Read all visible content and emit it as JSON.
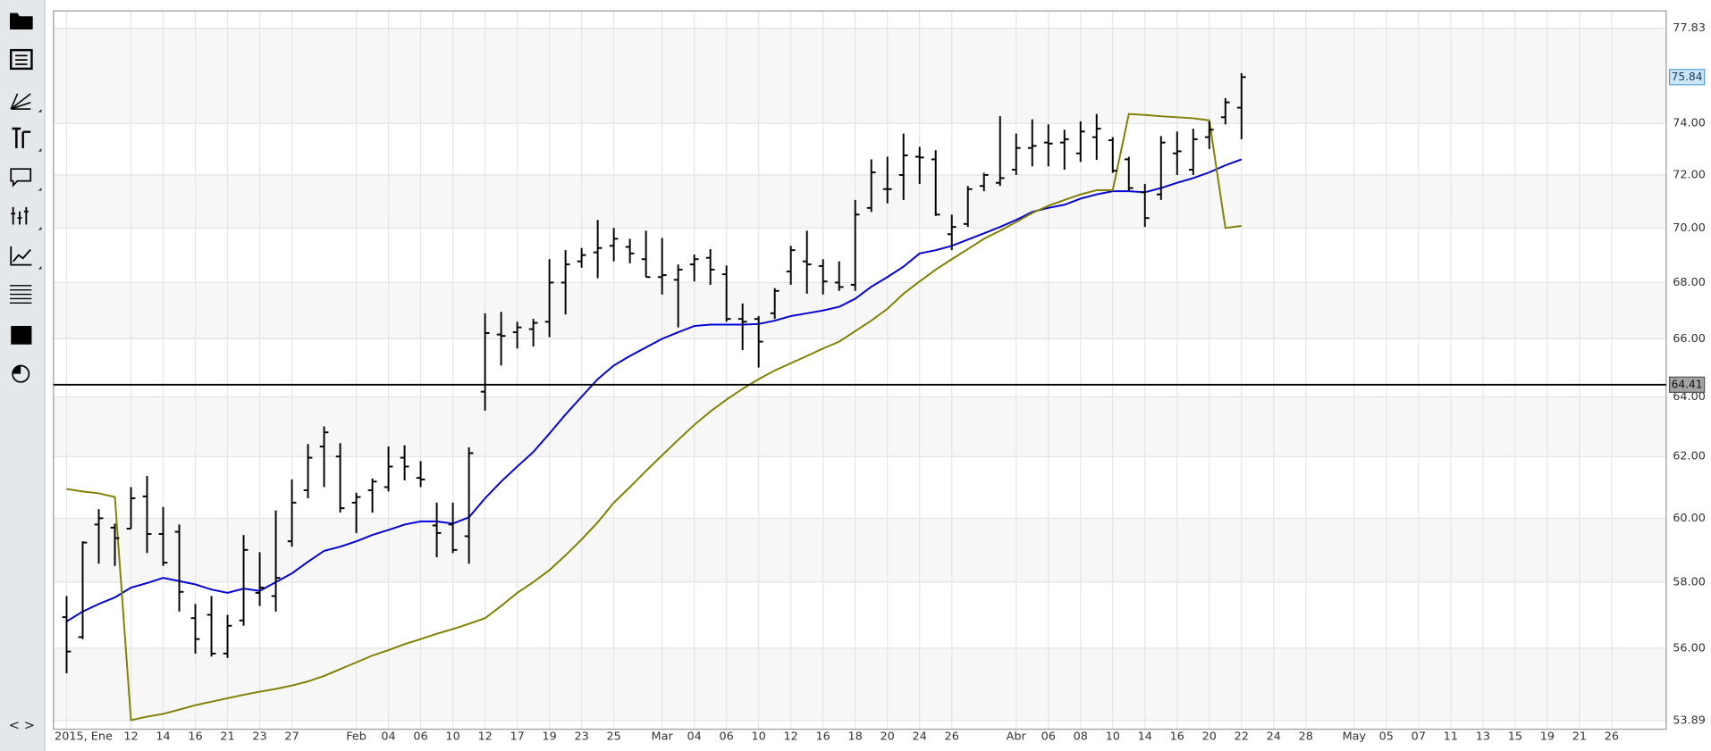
{
  "chart_data": {
    "type": "ohlc",
    "categories": [
      "2015, Ene",
      null,
      null,
      null,
      "12",
      null,
      "14",
      null,
      "16",
      null,
      "21",
      null,
      "23",
      null,
      "27",
      null,
      null,
      null,
      "Feb",
      null,
      "04",
      null,
      "06",
      null,
      "10",
      null,
      "12",
      null,
      "17",
      null,
      "19",
      null,
      "23",
      null,
      "25",
      null,
      null,
      "Mar",
      null,
      "04",
      null,
      "06",
      null,
      "10",
      null,
      "12",
      null,
      "16",
      null,
      "18",
      null,
      "20",
      null,
      "24",
      null,
      "26",
      null,
      null,
      null,
      "Abr",
      null,
      "06",
      null,
      "08",
      null,
      "10",
      null,
      "14",
      null,
      "16",
      null,
      "20",
      null,
      "22",
      null,
      "24",
      null,
      "28",
      null,
      null,
      "May",
      null,
      "05",
      null,
      "07",
      null,
      "11",
      null,
      "13",
      null,
      "15",
      null,
      "19",
      null,
      "21",
      null,
      "26",
      null,
      null,
      null
    ],
    "open": [
      56.93,
      56.33,
      59.8,
      59.7,
      59.67,
      60.7,
      59.5,
      59.57,
      56.9,
      57.0,
      55.84,
      56.83,
      57.67,
      57.57,
      59.27,
      60.9,
      62.33,
      62.0,
      60.5,
      60.9,
      61.0,
      61.96,
      61.3,
      59.77,
      59.8,
      59.43,
      64.17,
      66.15,
      66.23,
      66.34,
      66.6,
      68.0,
      68.77,
      69.1,
      69.34,
      69.3,
      68.85,
      68.2,
      68.1,
      68.66,
      68.9,
      68.3,
      66.7,
      66.7,
      66.9,
      68.4,
      68.77,
      68.6,
      68.0,
      67.92,
      70.75,
      71.46,
      72.0,
      72.7,
      72.6,
      69.77,
      70.15,
      71.58,
      71.7,
      72.2,
      73.04,
      73.25,
      73.25,
      72.83,
      73.46,
      73.34,
      72.6,
      71.34,
      71.26,
      72.83,
      72.2,
      73.46,
      74.24,
      74.62,
      null,
      null,
      null,
      null,
      null,
      null,
      null,
      null,
      null,
      null,
      null,
      null,
      null,
      null,
      null,
      null,
      null,
      null,
      null,
      null,
      null,
      null,
      null,
      null,
      null,
      null
    ],
    "high": [
      57.57,
      59.27,
      60.29,
      59.83,
      61.0,
      61.36,
      60.36,
      59.8,
      57.33,
      57.57,
      57.0,
      59.47,
      58.93,
      60.25,
      61.25,
      62.41,
      63.0,
      62.44,
      60.82,
      61.28,
      62.33,
      62.37,
      61.85,
      60.5,
      60.5,
      62.3,
      66.9,
      66.95,
      66.6,
      66.7,
      68.85,
      69.18,
      69.26,
      70.3,
      70.0,
      69.6,
      69.9,
      69.63,
      68.66,
      69.02,
      69.22,
      68.62,
      67.25,
      66.8,
      67.8,
      69.34,
      69.9,
      68.85,
      68.77,
      71.05,
      72.6,
      72.7,
      73.6,
      73.08,
      72.95,
      70.5,
      71.58,
      72.08,
      74.28,
      73.6,
      74.16,
      73.96,
      73.75,
      74.08,
      74.37,
      73.46,
      72.7,
      71.66,
      73.5,
      73.68,
      73.79,
      74.08,
      75.0,
      76.0,
      null,
      null,
      null,
      null,
      null,
      null,
      null,
      null,
      null,
      null,
      null,
      null,
      null,
      null,
      null,
      null,
      null,
      null,
      null,
      null,
      null,
      null,
      null,
      null,
      null,
      null
    ],
    "low": [
      55.26,
      56.27,
      58.57,
      58.5,
      59.67,
      58.9,
      58.5,
      57.1,
      55.84,
      55.75,
      55.71,
      56.67,
      57.27,
      57.1,
      59.1,
      60.64,
      61.0,
      60.18,
      59.53,
      60.18,
      60.86,
      61.22,
      61.0,
      58.77,
      58.9,
      58.57,
      63.53,
      65.07,
      65.66,
      65.73,
      66.06,
      66.86,
      68.54,
      68.16,
      68.77,
      68.7,
      68.2,
      67.57,
      66.4,
      68.04,
      67.92,
      66.6,
      65.6,
      65.0,
      66.7,
      67.92,
      67.6,
      67.57,
      67.7,
      67.7,
      70.6,
      70.92,
      71.05,
      71.66,
      70.45,
      69.18,
      70.04,
      71.38,
      71.58,
      72.0,
      72.33,
      72.33,
      72.2,
      72.5,
      72.58,
      72.08,
      71.38,
      70.04,
      71.05,
      72.0,
      72.0,
      73.0,
      73.96,
      73.38,
      null,
      null,
      null,
      null,
      null,
      null,
      null,
      null,
      null,
      null,
      null,
      null,
      null,
      null,
      null,
      null,
      null,
      null,
      null,
      null,
      null,
      null,
      null,
      null,
      null,
      null
    ],
    "close": [
      55.9,
      59.23,
      60.0,
      59.37,
      60.64,
      59.5,
      58.6,
      57.7,
      56.27,
      55.84,
      56.67,
      59.0,
      57.83,
      58.13,
      60.5,
      61.96,
      62.8,
      60.32,
      60.68,
      61.18,
      61.67,
      61.67,
      61.25,
      59.53,
      59.0,
      62.11,
      66.2,
      66.1,
      66.4,
      66.56,
      68.0,
      68.66,
      69.0,
      69.26,
      69.6,
      69.06,
      68.2,
      68.27,
      68.47,
      68.85,
      68.47,
      66.7,
      66.6,
      65.9,
      67.7,
      69.18,
      68.66,
      68.04,
      67.84,
      70.5,
      72.1,
      71.46,
      72.75,
      72.67,
      70.5,
      70.04,
      71.46,
      72.0,
      71.88,
      73.04,
      73.12,
      73.21,
      73.38,
      73.68,
      73.79,
      72.16,
      71.5,
      70.37,
      73.25,
      72.91,
      73.38,
      73.75,
      74.83,
      75.84,
      null,
      null,
      null,
      null,
      null,
      null,
      null,
      null,
      null,
      null,
      null,
      null,
      null,
      null,
      null,
      null,
      null,
      null,
      null,
      null,
      null,
      null,
      null,
      null,
      null,
      null
    ],
    "color": "#000000",
    "lines": [
      {
        "color": "#0000dd",
        "values": [
          56.8,
          57.1,
          57.33,
          57.53,
          57.83,
          57.97,
          58.13,
          58.03,
          57.93,
          57.77,
          57.67,
          57.8,
          57.73,
          58.0,
          58.27,
          58.63,
          58.97,
          59.1,
          59.27,
          59.47,
          59.63,
          59.8,
          59.9,
          59.9,
          59.83,
          60.03,
          60.64,
          61.18,
          61.67,
          62.15,
          62.76,
          63.4,
          64.0,
          64.6,
          65.07,
          65.4,
          65.7,
          66.0,
          66.23,
          66.45,
          66.5,
          66.5,
          66.5,
          66.52,
          66.64,
          66.8,
          66.9,
          67.0,
          67.13,
          67.42,
          67.85,
          68.2,
          68.58,
          69.06,
          69.18,
          69.34,
          69.57,
          69.8,
          70.04,
          70.3,
          70.6,
          70.75,
          70.87,
          71.1,
          71.26,
          71.38,
          71.38,
          71.34,
          71.5,
          71.7,
          71.88,
          72.1,
          72.37,
          72.6,
          null,
          null,
          null,
          null,
          null,
          null,
          null,
          null,
          null,
          null,
          null,
          null,
          null,
          null,
          null,
          null,
          null,
          null,
          null,
          null,
          null,
          null,
          null,
          null,
          null,
          null
        ]
      },
      {
        "color": "#808000",
        "values": [
          60.94,
          60.86,
          60.8,
          60.68,
          53.9,
          54.0,
          54.08,
          54.2,
          54.33,
          54.43,
          54.53,
          54.63,
          54.72,
          54.8,
          54.9,
          55.02,
          55.18,
          55.38,
          55.58,
          55.78,
          55.94,
          56.12,
          56.27,
          56.43,
          56.57,
          56.73,
          56.9,
          57.27,
          57.67,
          58.0,
          58.37,
          58.83,
          59.33,
          59.87,
          60.5,
          61.0,
          61.53,
          62.04,
          62.55,
          63.05,
          63.5,
          63.9,
          64.27,
          64.6,
          64.9,
          65.15,
          65.4,
          65.66,
          65.9,
          66.27,
          66.64,
          67.06,
          67.6,
          68.04,
          68.47,
          68.85,
          69.22,
          69.6,
          69.9,
          70.22,
          70.56,
          70.83,
          71.05,
          71.26,
          71.42,
          71.42,
          74.37,
          74.33,
          74.28,
          74.24,
          74.2,
          74.12,
          70.0,
          70.08,
          null,
          null,
          null,
          null,
          null,
          null,
          null,
          null,
          null,
          null,
          null,
          null,
          null,
          null,
          null,
          null,
          null,
          null,
          null,
          null,
          null,
          null,
          null,
          null,
          null,
          null
        ]
      }
    ],
    "hline": 64.41,
    "yscale": "log",
    "ylim": [
      53.89,
      77.83
    ],
    "yticks": [
      53.89,
      {
        "value": 56,
        "label": "56.00"
      },
      {
        "value": 58,
        "label": "58.00"
      },
      {
        "value": 60,
        "label": "60.00"
      },
      {
        "value": 62,
        "label": "62.00"
      },
      {
        "value": 64,
        "label": "64.00"
      },
      {
        "value": 66,
        "label": "66.00"
      },
      {
        "value": 68,
        "label": "68.00"
      },
      {
        "value": 70,
        "label": "70.00"
      },
      {
        "value": 72,
        "label": "72.00"
      },
      {
        "value": 74,
        "label": "74.00"
      },
      77.83
    ],
    "grid": true
  },
  "toolbar": {
    "toggle": "< >"
  }
}
